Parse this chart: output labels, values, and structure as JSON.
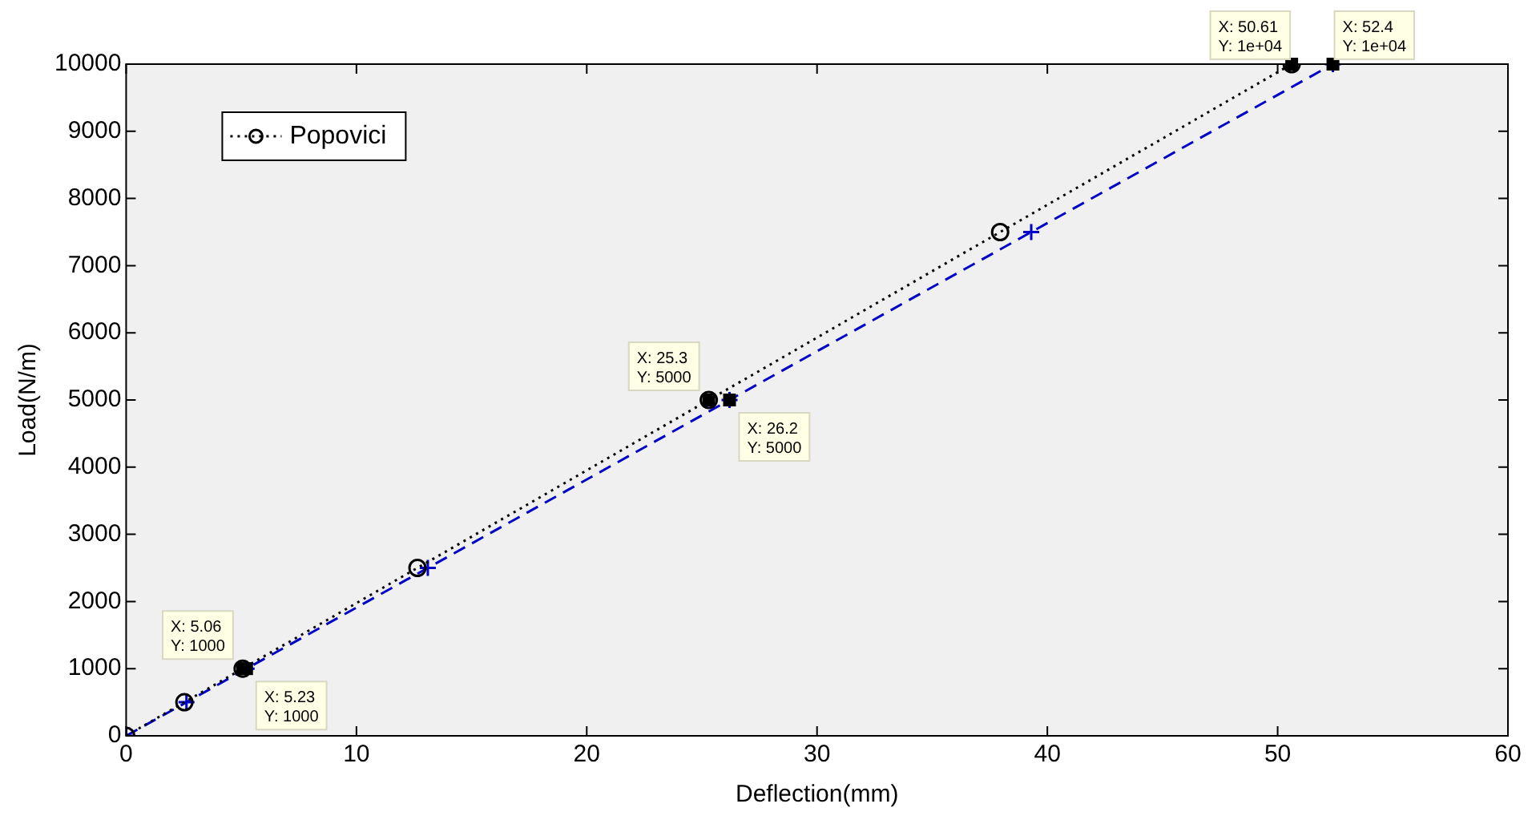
{
  "chart_data": {
    "type": "line",
    "xlabel": "Deflection(mm)",
    "ylabel": "Load(N/m)",
    "xlim": [
      0,
      60
    ],
    "xticks": [
      0,
      10,
      20,
      30,
      40,
      50,
      60
    ],
    "ylim": [
      0,
      10000
    ],
    "yticks": [
      0,
      1000,
      2000,
      3000,
      4000,
      5000,
      6000,
      7000,
      8000,
      9000,
      10000
    ],
    "grid": false,
    "legend": "top left",
    "series": [
      {
        "name": "Popovici",
        "color": "#000000",
        "marker": "circle",
        "line_style": "dotted",
        "x": [
          0,
          2.53,
          5.06,
          12.65,
          25.3,
          37.95,
          50.61
        ],
        "values": [
          0,
          500,
          1000,
          2500,
          5000,
          7500,
          10000
        ]
      },
      {
        "color": "#0000c8",
        "marker": "cross",
        "line_style": "dashed",
        "x": [
          0,
          2.62,
          5.23,
          13.1,
          26.2,
          39.3,
          52.4
        ],
        "values": [
          0,
          500,
          1000,
          2500,
          5000,
          7500,
          10000
        ]
      }
    ],
    "annotations": [
      {
        "text": "X: 5.06\nY: 1000",
        "x": 5.06,
        "y": 1000
      },
      {
        "text": "X: 5.23\nY: 1000",
        "x": 5.23,
        "y": 1000
      },
      {
        "text": "X: 25.3\nY: 5000",
        "x": 25.3,
        "y": 5000
      },
      {
        "text": "X: 26.2\nY: 5000",
        "x": 26.2,
        "y": 5000
      },
      {
        "text": "X: 50.61\nY: 1e+04",
        "x": 50.61,
        "y": 10000
      },
      {
        "text": "X: 52.4\nY: 1e+04",
        "x": 52.4,
        "y": 10000
      }
    ]
  }
}
